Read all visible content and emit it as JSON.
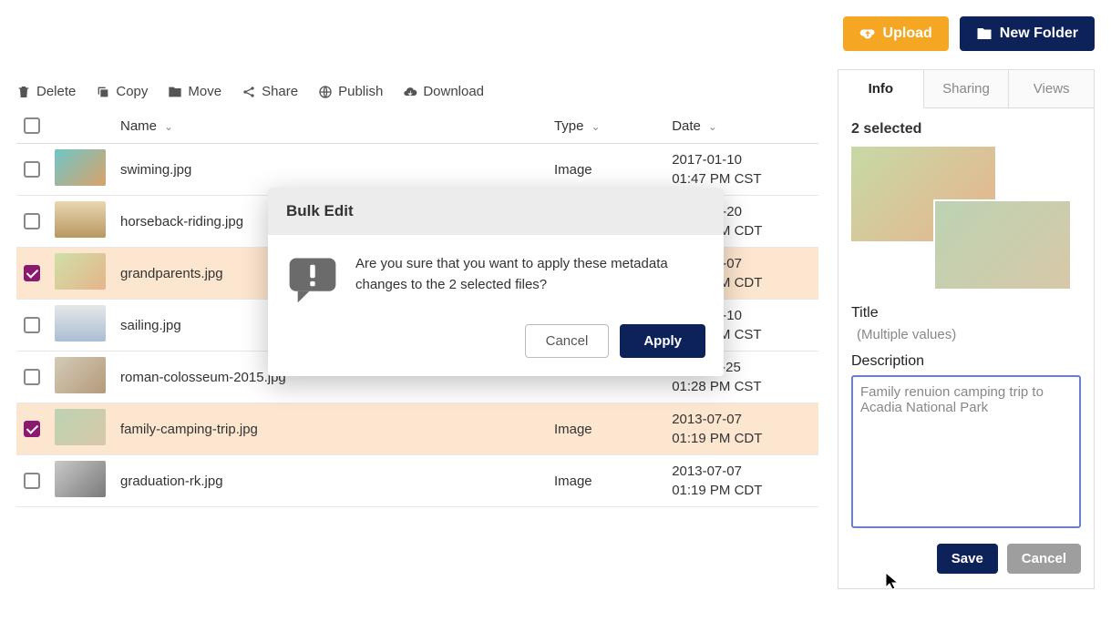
{
  "topButtons": {
    "upload": "Upload",
    "newFolder": "New Folder"
  },
  "toolbar": {
    "delete": "Delete",
    "copy": "Copy",
    "move": "Move",
    "share": "Share",
    "publish": "Publish",
    "download": "Download"
  },
  "columns": {
    "name": "Name",
    "type": "Type",
    "date": "Date"
  },
  "files": [
    {
      "name": "swiming.jpg",
      "type": "Image",
      "date1": "2017-01-10",
      "date2": "01:47 PM CST",
      "selected": false,
      "thumb": "linear-gradient(135deg,#6fc6c6,#d9a26a)"
    },
    {
      "name": "horseback-riding.jpg",
      "type": "",
      "date1": "2017-04-20",
      "date2": "01:41 PM CDT",
      "selected": false,
      "thumb": "linear-gradient(180deg,#ead6b3,#b79860)"
    },
    {
      "name": "grandparents.jpg",
      "type": "",
      "date1": "2013-07-07",
      "date2": "01:19 PM CDT",
      "selected": true,
      "thumb": "linear-gradient(135deg,#cfe0a8,#e6b48b)"
    },
    {
      "name": "sailing.jpg",
      "type": "",
      "date1": "2017-01-10",
      "date2": "01:47 PM CST",
      "selected": false,
      "thumb": "linear-gradient(180deg,#e6e6e6,#a9bfd4)"
    },
    {
      "name": "roman-colosseum-2015.jpg",
      "type": "",
      "date1": "2011-12-25",
      "date2": "01:28 PM CST",
      "selected": false,
      "thumb": "linear-gradient(135deg,#d3cbb8,#b59a7a)"
    },
    {
      "name": "family-camping-trip.jpg",
      "type": "Image",
      "date1": "2013-07-07",
      "date2": "01:19 PM CDT",
      "selected": true,
      "thumb": "linear-gradient(135deg,#bcd3b2,#d7c8a9)"
    },
    {
      "name": "graduation-rk.jpg",
      "type": "Image",
      "date1": "2013-07-07",
      "date2": "01:19 PM CDT",
      "selected": false,
      "thumb": "linear-gradient(135deg,#c9c9c9,#7a7a7a)"
    }
  ],
  "sidePanel": {
    "tabs": {
      "info": "Info",
      "sharing": "Sharing",
      "views": "Views"
    },
    "selectedCount": "2 selected",
    "titleLabel": "Title",
    "titlePlaceholder": "(Multiple values)",
    "descLabel": "Description",
    "descValue": "Family renuion camping trip to Acadia National Park",
    "save": "Save",
    "cancel": "Cancel"
  },
  "modal": {
    "title": "Bulk Edit",
    "message": "Are you sure that you want to apply these metadata changes to the 2 selected files?",
    "cancel": "Cancel",
    "apply": "Apply"
  },
  "colors": {
    "accent_navy": "#0d2259",
    "accent_orange": "#f5a623",
    "row_selected": "#fde6cf",
    "checkbox_checked": "#8a1a6f",
    "input_focus_border": "#6a7fd1",
    "tab_inactive_text": "#888888",
    "border": "#dddddd",
    "muted_button": "#9e9e9e"
  }
}
